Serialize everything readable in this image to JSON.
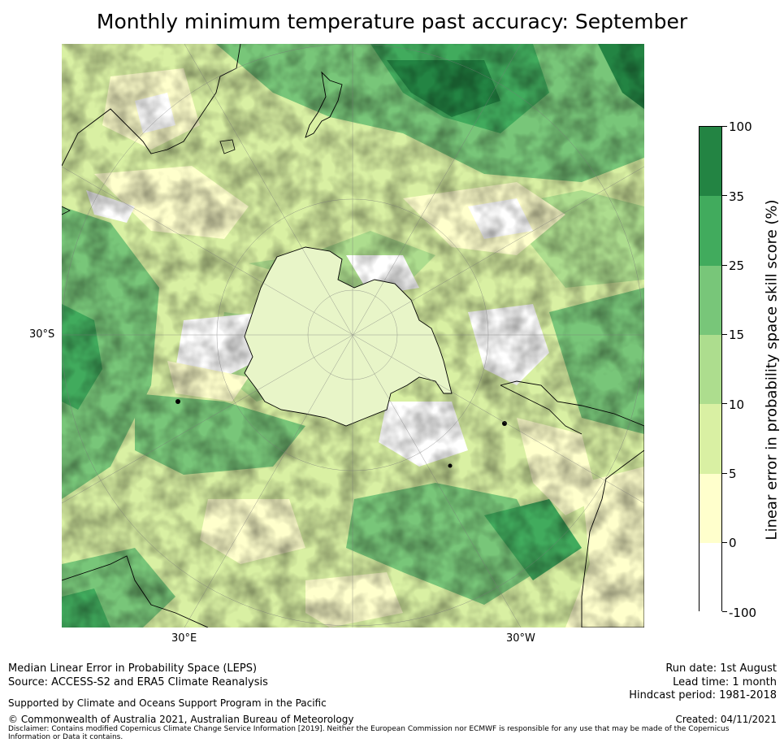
{
  "title": "Monthly minimum temperature past accuracy: September",
  "map": {
    "lat_labels": [
      "30°S"
    ],
    "lon_labels": [
      "30°E",
      "30°W"
    ],
    "projection": "south polar stereographic",
    "coastline_color": "#000000"
  },
  "colorbar": {
    "label": "Linear error in probability space skill score (%)",
    "ticks": [
      "100",
      "35",
      "25",
      "15",
      "10",
      "5",
      "0",
      "-100"
    ],
    "bins": [
      {
        "range": [
          -100,
          0
        ],
        "color": "#ffffff"
      },
      {
        "range": [
          0,
          5
        ],
        "color": "#ffffcc"
      },
      {
        "range": [
          5,
          10
        ],
        "color": "#d9f0a3"
      },
      {
        "range": [
          10,
          15
        ],
        "color": "#addd8e"
      },
      {
        "range": [
          15,
          25
        ],
        "color": "#78c679"
      },
      {
        "range": [
          25,
          35
        ],
        "color": "#41ab5d"
      },
      {
        "range": [
          35,
          100
        ],
        "color": "#238443"
      }
    ]
  },
  "footer": {
    "method": "Median Linear Error in Probability Space (LEPS)",
    "source": "Source: ACCESS-S2 and ERA5 Climate Reanalysis",
    "support": "Supported by Climate and Oceans Support Program in the Pacific",
    "copyright": "© Commonwealth of Australia 2021, Australian Bureau of Meteorology",
    "disclaimer": "Disclaimer: Contains modified Copernicus Climate Change Service Information [2019]. Neither the European Commission nor ECMWF is responsible for any use that may be made of the Copernicus Information or Data it contains.",
    "run_date": "Run date: 1st August",
    "lead_time": "Lead time: 1 month",
    "hindcast": "Hindcast period: 1981-2018",
    "created": "Created: 04/11/2021"
  }
}
